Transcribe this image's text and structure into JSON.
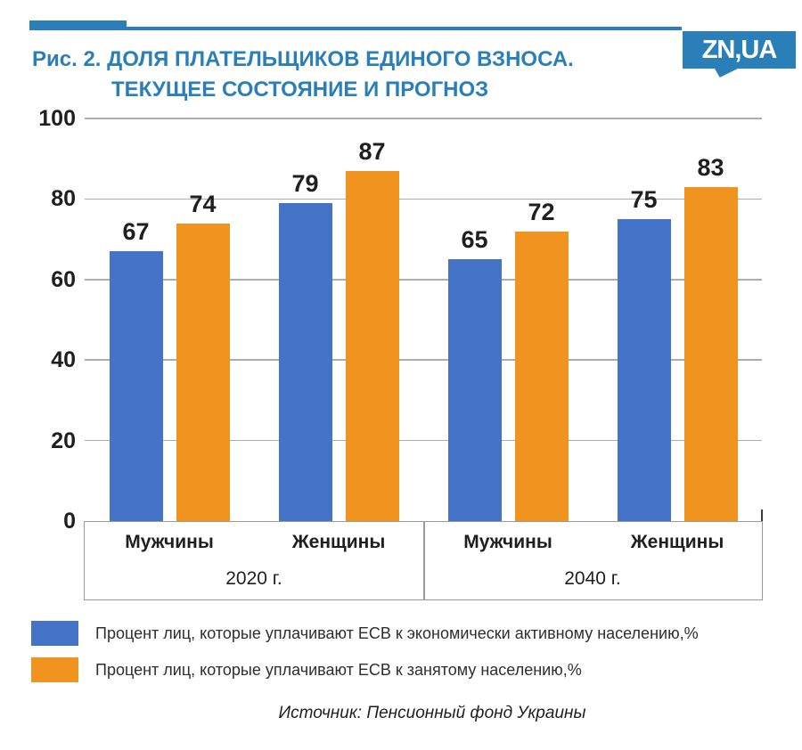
{
  "header": {
    "title_line1": "Рис. 2. ДОЛЯ ПЛАТЕЛЬЩИКОВ ЕДИНОГО ВЗНОСА.",
    "title_line2": "ТЕКУЩЕЕ СОСТОЯНИЕ И ПРОГНОЗ",
    "logo_text": "ZN,UA",
    "accent_color": "#2B7FB9"
  },
  "chart_data": {
    "type": "bar",
    "title": "Рис. 2. ДОЛЯ ПЛАТЕЛЬЩИКОВ ЕДИНОГО ВЗНОСА. ТЕКУЩЕЕ СОСТОЯНИЕ И ПРОГНОЗ",
    "ylim": [
      0,
      100
    ],
    "yticks": [
      0,
      20,
      40,
      60,
      80,
      100
    ],
    "grid": true,
    "legend_position": "bottom-left",
    "category_groups": [
      {
        "label": "2020 г.",
        "categories": [
          "Мужчины",
          "Женщины"
        ]
      },
      {
        "label": "2040 г.",
        "categories": [
          "Мужчины",
          "Женщины"
        ]
      }
    ],
    "categories": [
      "Мужчины",
      "Женщины",
      "Мужчины",
      "Женщины"
    ],
    "series": [
      {
        "name": "Процент лиц, которые уплачивают ЕСВ к экономически активному населению,%",
        "color": "#4573C8",
        "values": [
          67,
          79,
          65,
          75
        ]
      },
      {
        "name": "Процент лиц, которые уплачивают ЕСВ к занятому населению,%",
        "color": "#F0941F",
        "values": [
          74,
          87,
          72,
          83
        ]
      }
    ],
    "grid_color": "#ADADAD"
  },
  "source": "Источник: Пенсионный фонд Украины"
}
